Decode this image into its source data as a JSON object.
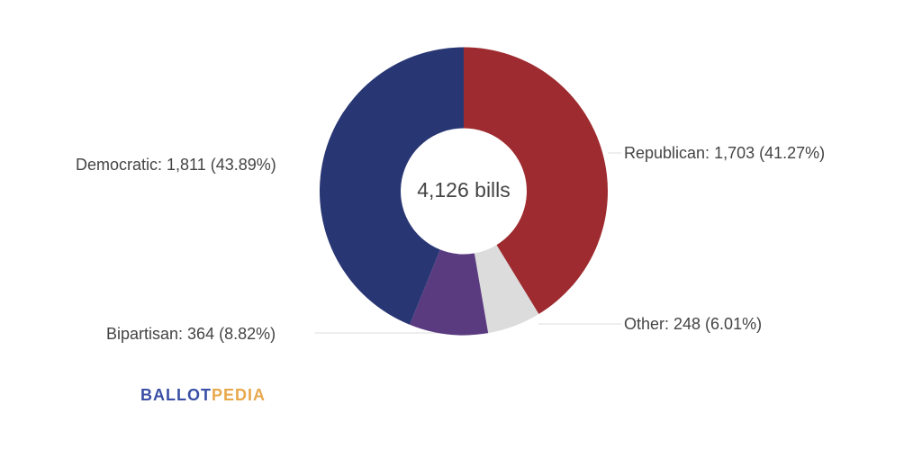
{
  "chart_data": {
    "type": "pie",
    "donut": true,
    "center_label": "4,126 bills",
    "slices": [
      {
        "name": "Republican",
        "value": 1703,
        "percent": 41.27,
        "label": "Republican: 1,703 (41.27%)",
        "color": "#9e2b2f"
      },
      {
        "name": "Other",
        "value": 248,
        "percent": 6.01,
        "label": "Other: 248 (6.01%)",
        "color": "#dcdcdc"
      },
      {
        "name": "Bipartisan",
        "value": 364,
        "percent": 8.82,
        "label": "Bipartisan: 364 (8.82%)",
        "color": "#5b3b80"
      },
      {
        "name": "Democratic",
        "value": 1811,
        "percent": 43.89,
        "label": "Democratic: 1,811 (43.89%)",
        "color": "#283673"
      }
    ]
  },
  "logo": {
    "part1": "BALLOT",
    "part2": "PEDIA"
  }
}
